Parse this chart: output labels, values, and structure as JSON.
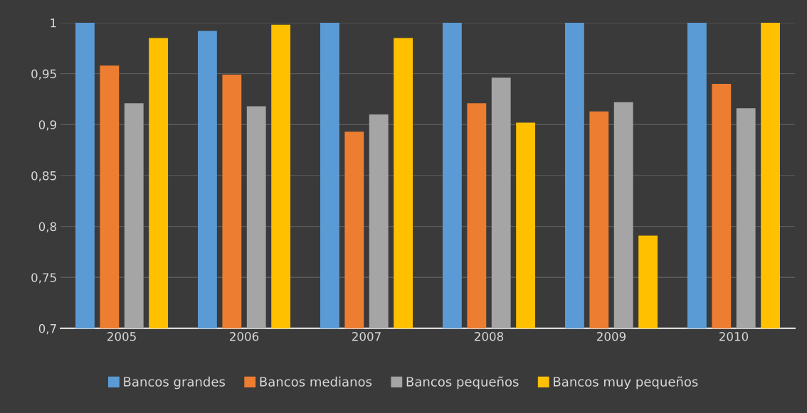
{
  "chart_data": {
    "type": "bar",
    "categories": [
      "2005",
      "2006",
      "2007",
      "2008",
      "2009",
      "2010"
    ],
    "series": [
      {
        "name": "Bancos grandes",
        "color": "#5b9bd5",
        "values": [
          1.0,
          0.992,
          1.0,
          1.0,
          1.0,
          1.0
        ]
      },
      {
        "name": "Bancos medianos",
        "color": "#ed7d31",
        "values": [
          0.958,
          0.949,
          0.893,
          0.921,
          0.913,
          0.94
        ]
      },
      {
        "name": "Bancos pequeños",
        "color": "#a5a5a5",
        "values": [
          0.921,
          0.918,
          0.91,
          0.946,
          0.922,
          0.916
        ]
      },
      {
        "name": "Bancos muy pequeños",
        "color": "#ffc000",
        "values": [
          0.985,
          0.998,
          0.985,
          0.902,
          0.791,
          1.0
        ]
      }
    ],
    "ylim": [
      0.7,
      1.0
    ],
    "yticks": [
      {
        "value": 0.7,
        "label": "0,7"
      },
      {
        "value": 0.75,
        "label": "0,75"
      },
      {
        "value": 0.8,
        "label": "0,8"
      },
      {
        "value": 0.85,
        "label": "0,85"
      },
      {
        "value": 0.9,
        "label": "0,9"
      },
      {
        "value": 0.95,
        "label": "0,95"
      },
      {
        "value": 1.0,
        "label": "1"
      }
    ],
    "grid": "y",
    "legend": "bottom"
  }
}
